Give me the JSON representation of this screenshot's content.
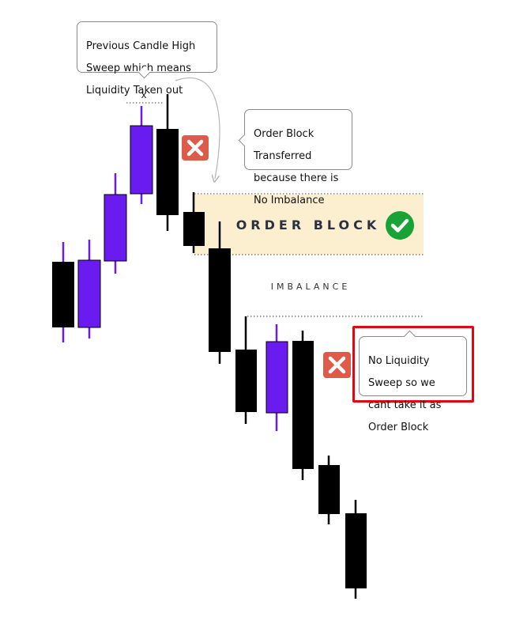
{
  "callouts": {
    "liquidity_sweep": [
      "Previous Candle High",
      "Sweep which means",
      "Liquidity Taken out"
    ],
    "order_block_transferred": [
      "Order Block",
      "Transferred",
      "because there is",
      "No Imbalance"
    ],
    "no_liquidity_sweep": [
      "No Liquidity",
      "Sweep so we",
      "cant take it as",
      "Order Block"
    ]
  },
  "zones": {
    "order_block_label": "ORDER BLOCK",
    "imbalance_label": "IMBALANCE",
    "sweep_marker": "x"
  },
  "icons": {
    "reject": "cross-icon",
    "accept": "check-icon"
  },
  "colors": {
    "bullish": "#6a1cf0",
    "bearish": "#000000",
    "order_block_fill": "#fbefd0",
    "reject": "#de5b4a",
    "accept": "#17a336",
    "highlight_border": "#e30613"
  }
}
